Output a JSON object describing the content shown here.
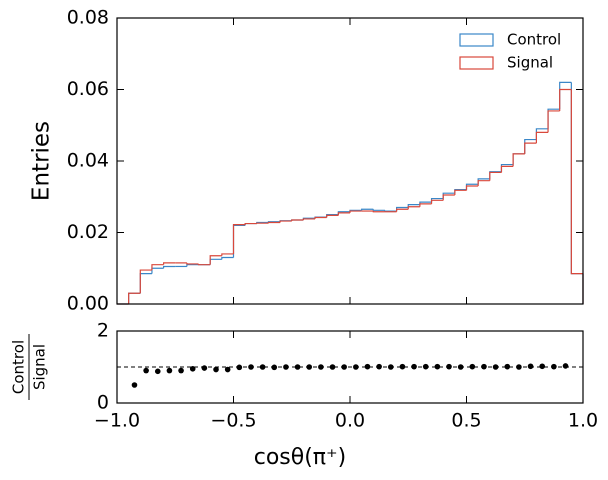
{
  "chart_data": [
    {
      "type": "histogram",
      "ylabel": "Entries",
      "bins": [
        -1,
        -0.95,
        -0.9,
        -0.85,
        -0.8,
        -0.75,
        -0.7,
        -0.65,
        -0.6,
        -0.55,
        -0.5,
        -0.45,
        -0.4,
        -0.35,
        -0.3,
        -0.25,
        -0.2,
        -0.15,
        -0.1,
        -0.05,
        0,
        0.05,
        0.1,
        0.15,
        0.2,
        0.25,
        0.3,
        0.35,
        0.4,
        0.45,
        0.5,
        0.55,
        0.6,
        0.65,
        0.7,
        0.75,
        0.8,
        0.85,
        0.9,
        0.95,
        1
      ],
      "series": [
        {
          "name": "Control",
          "color": "#3a87c8",
          "values": [
            0,
            0.003,
            0.0085,
            0.01,
            0.0105,
            0.0105,
            0.011,
            0.011,
            0.0125,
            0.013,
            0.022,
            0.0225,
            0.0228,
            0.023,
            0.0233,
            0.0235,
            0.024,
            0.0243,
            0.025,
            0.0258,
            0.0262,
            0.0265,
            0.0262,
            0.026,
            0.027,
            0.0278,
            0.0285,
            0.0295,
            0.031,
            0.032,
            0.0335,
            0.035,
            0.037,
            0.039,
            0.042,
            0.046,
            0.049,
            0.0545,
            0.062,
            0.0085
          ]
        },
        {
          "name": "Signal",
          "color": "#d9483b",
          "values": [
            0,
            0.003,
            0.0095,
            0.011,
            0.0115,
            0.0115,
            0.0112,
            0.011,
            0.0135,
            0.014,
            0.0222,
            0.0225,
            0.0226,
            0.0228,
            0.0232,
            0.0235,
            0.0238,
            0.0242,
            0.0248,
            0.0255,
            0.026,
            0.026,
            0.0258,
            0.0258,
            0.0265,
            0.0272,
            0.028,
            0.029,
            0.0305,
            0.0318,
            0.033,
            0.0345,
            0.0368,
            0.0385,
            0.042,
            0.045,
            0.048,
            0.054,
            0.06,
            0.0085
          ]
        }
      ],
      "xlim": [
        -1,
        1
      ],
      "xticks": [
        -1,
        -0.5,
        0,
        0.5,
        1
      ],
      "ylim": [
        0,
        0.08
      ],
      "yticks": [
        {
          "value": 0,
          "label": "0.00"
        },
        {
          "value": 0.02,
          "label": "0.02"
        },
        {
          "value": 0.04,
          "label": "0.04"
        },
        {
          "value": 0.06,
          "label": "0.06"
        },
        {
          "value": 0.08,
          "label": "0.08"
        }
      ],
      "legend": "upper right"
    },
    {
      "type": "scatter",
      "xlabel": "cosθ(π⁺)",
      "ylabel": {
        "numerator": "Control",
        "denominator": "Signal"
      },
      "color": "#000000",
      "refline": 1,
      "x": [
        -0.925,
        -0.875,
        -0.825,
        -0.775,
        -0.725,
        -0.675,
        -0.625,
        -0.575,
        -0.525,
        -0.475,
        -0.425,
        -0.375,
        -0.325,
        -0.275,
        -0.225,
        -0.175,
        -0.125,
        -0.075,
        -0.025,
        0.025,
        0.075,
        0.125,
        0.175,
        0.225,
        0.275,
        0.325,
        0.375,
        0.425,
        0.475,
        0.525,
        0.575,
        0.625,
        0.675,
        0.725,
        0.775,
        0.825,
        0.875,
        0.925
      ],
      "values": [
        0.5,
        0.9,
        0.88,
        0.9,
        0.9,
        0.95,
        0.97,
        0.93,
        0.93,
        0.99,
        1.0,
        1.0,
        0.99,
        1.0,
        1.0,
        1.0,
        1.0,
        1.0,
        1.0,
        1.0,
        1.01,
        1.01,
        1.0,
        1.01,
        1.01,
        1.01,
        1.01,
        1.01,
        1.0,
        1.01,
        1.01,
        1.0,
        1.01,
        1.0,
        1.02,
        1.02,
        1.01,
        1.03
      ],
      "xlim": [
        -1,
        1
      ],
      "xticks": [
        {
          "value": -1,
          "label": "−1.0"
        },
        {
          "value": -0.5,
          "label": "−0.5"
        },
        {
          "value": 0,
          "label": "0.0"
        },
        {
          "value": 0.5,
          "label": "0.5"
        },
        {
          "value": 1,
          "label": "1.0"
        }
      ],
      "ylim": [
        0,
        2
      ],
      "yticks": [
        0,
        2
      ]
    }
  ]
}
